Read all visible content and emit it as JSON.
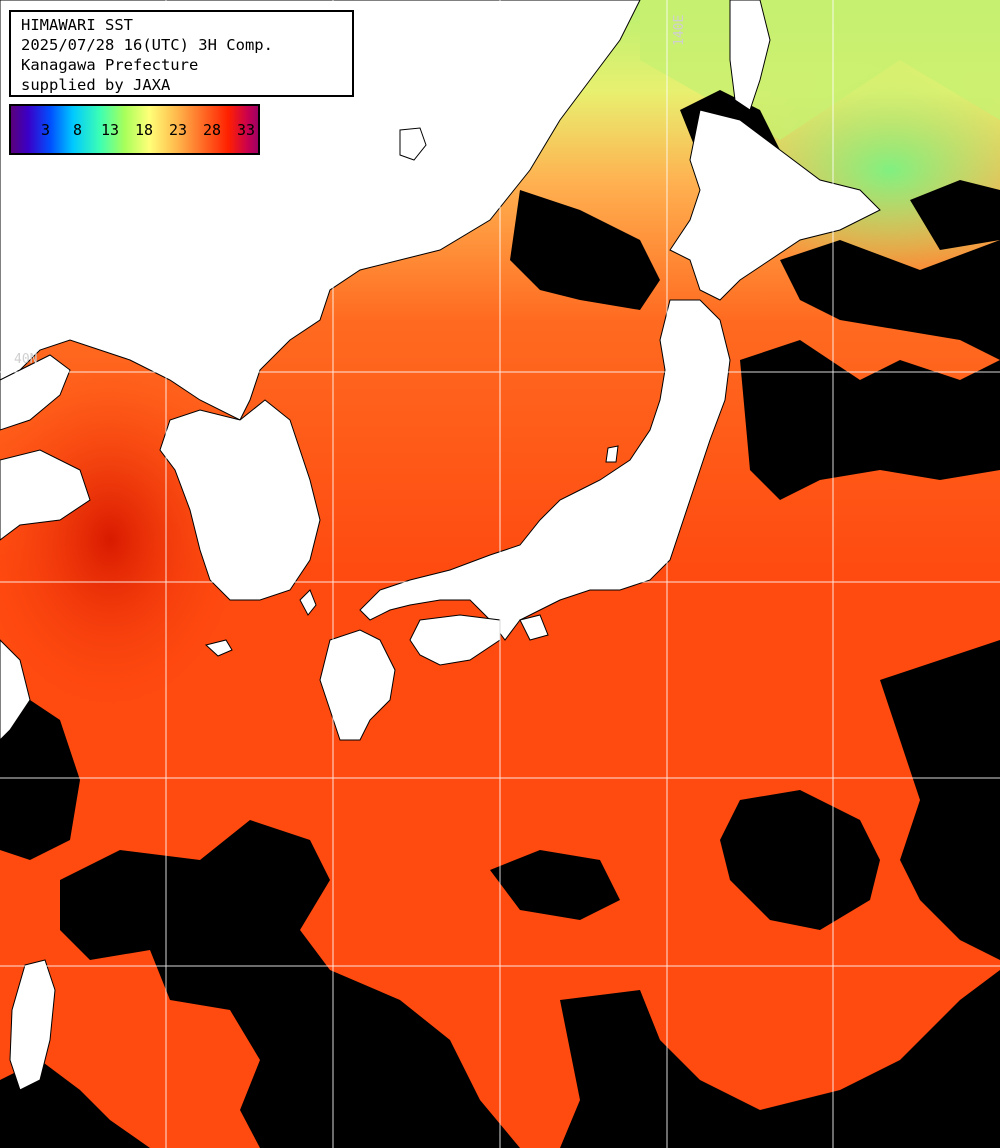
{
  "title": {
    "lines": [
      "HIMAWARI SST",
      "2025/07/28 16(UTC) 3H Comp.",
      "Kanagawa Prefecture",
      "supplied by JAXA"
    ]
  },
  "color_scale": {
    "labels": [
      "3",
      "8",
      "13",
      "18",
      "23",
      "28",
      "33"
    ]
  },
  "grid_labels": {
    "latitude": "40N",
    "longitude": "140E"
  },
  "colors": {
    "warm_sea": "#ff5a14",
    "hot_sea": "#e02000",
    "cool_sea": "#ffc860",
    "cold_sea": "#a0f080",
    "cloud_no_data": "#000000",
    "land": "#ffffff",
    "grid": "#ffffff"
  }
}
